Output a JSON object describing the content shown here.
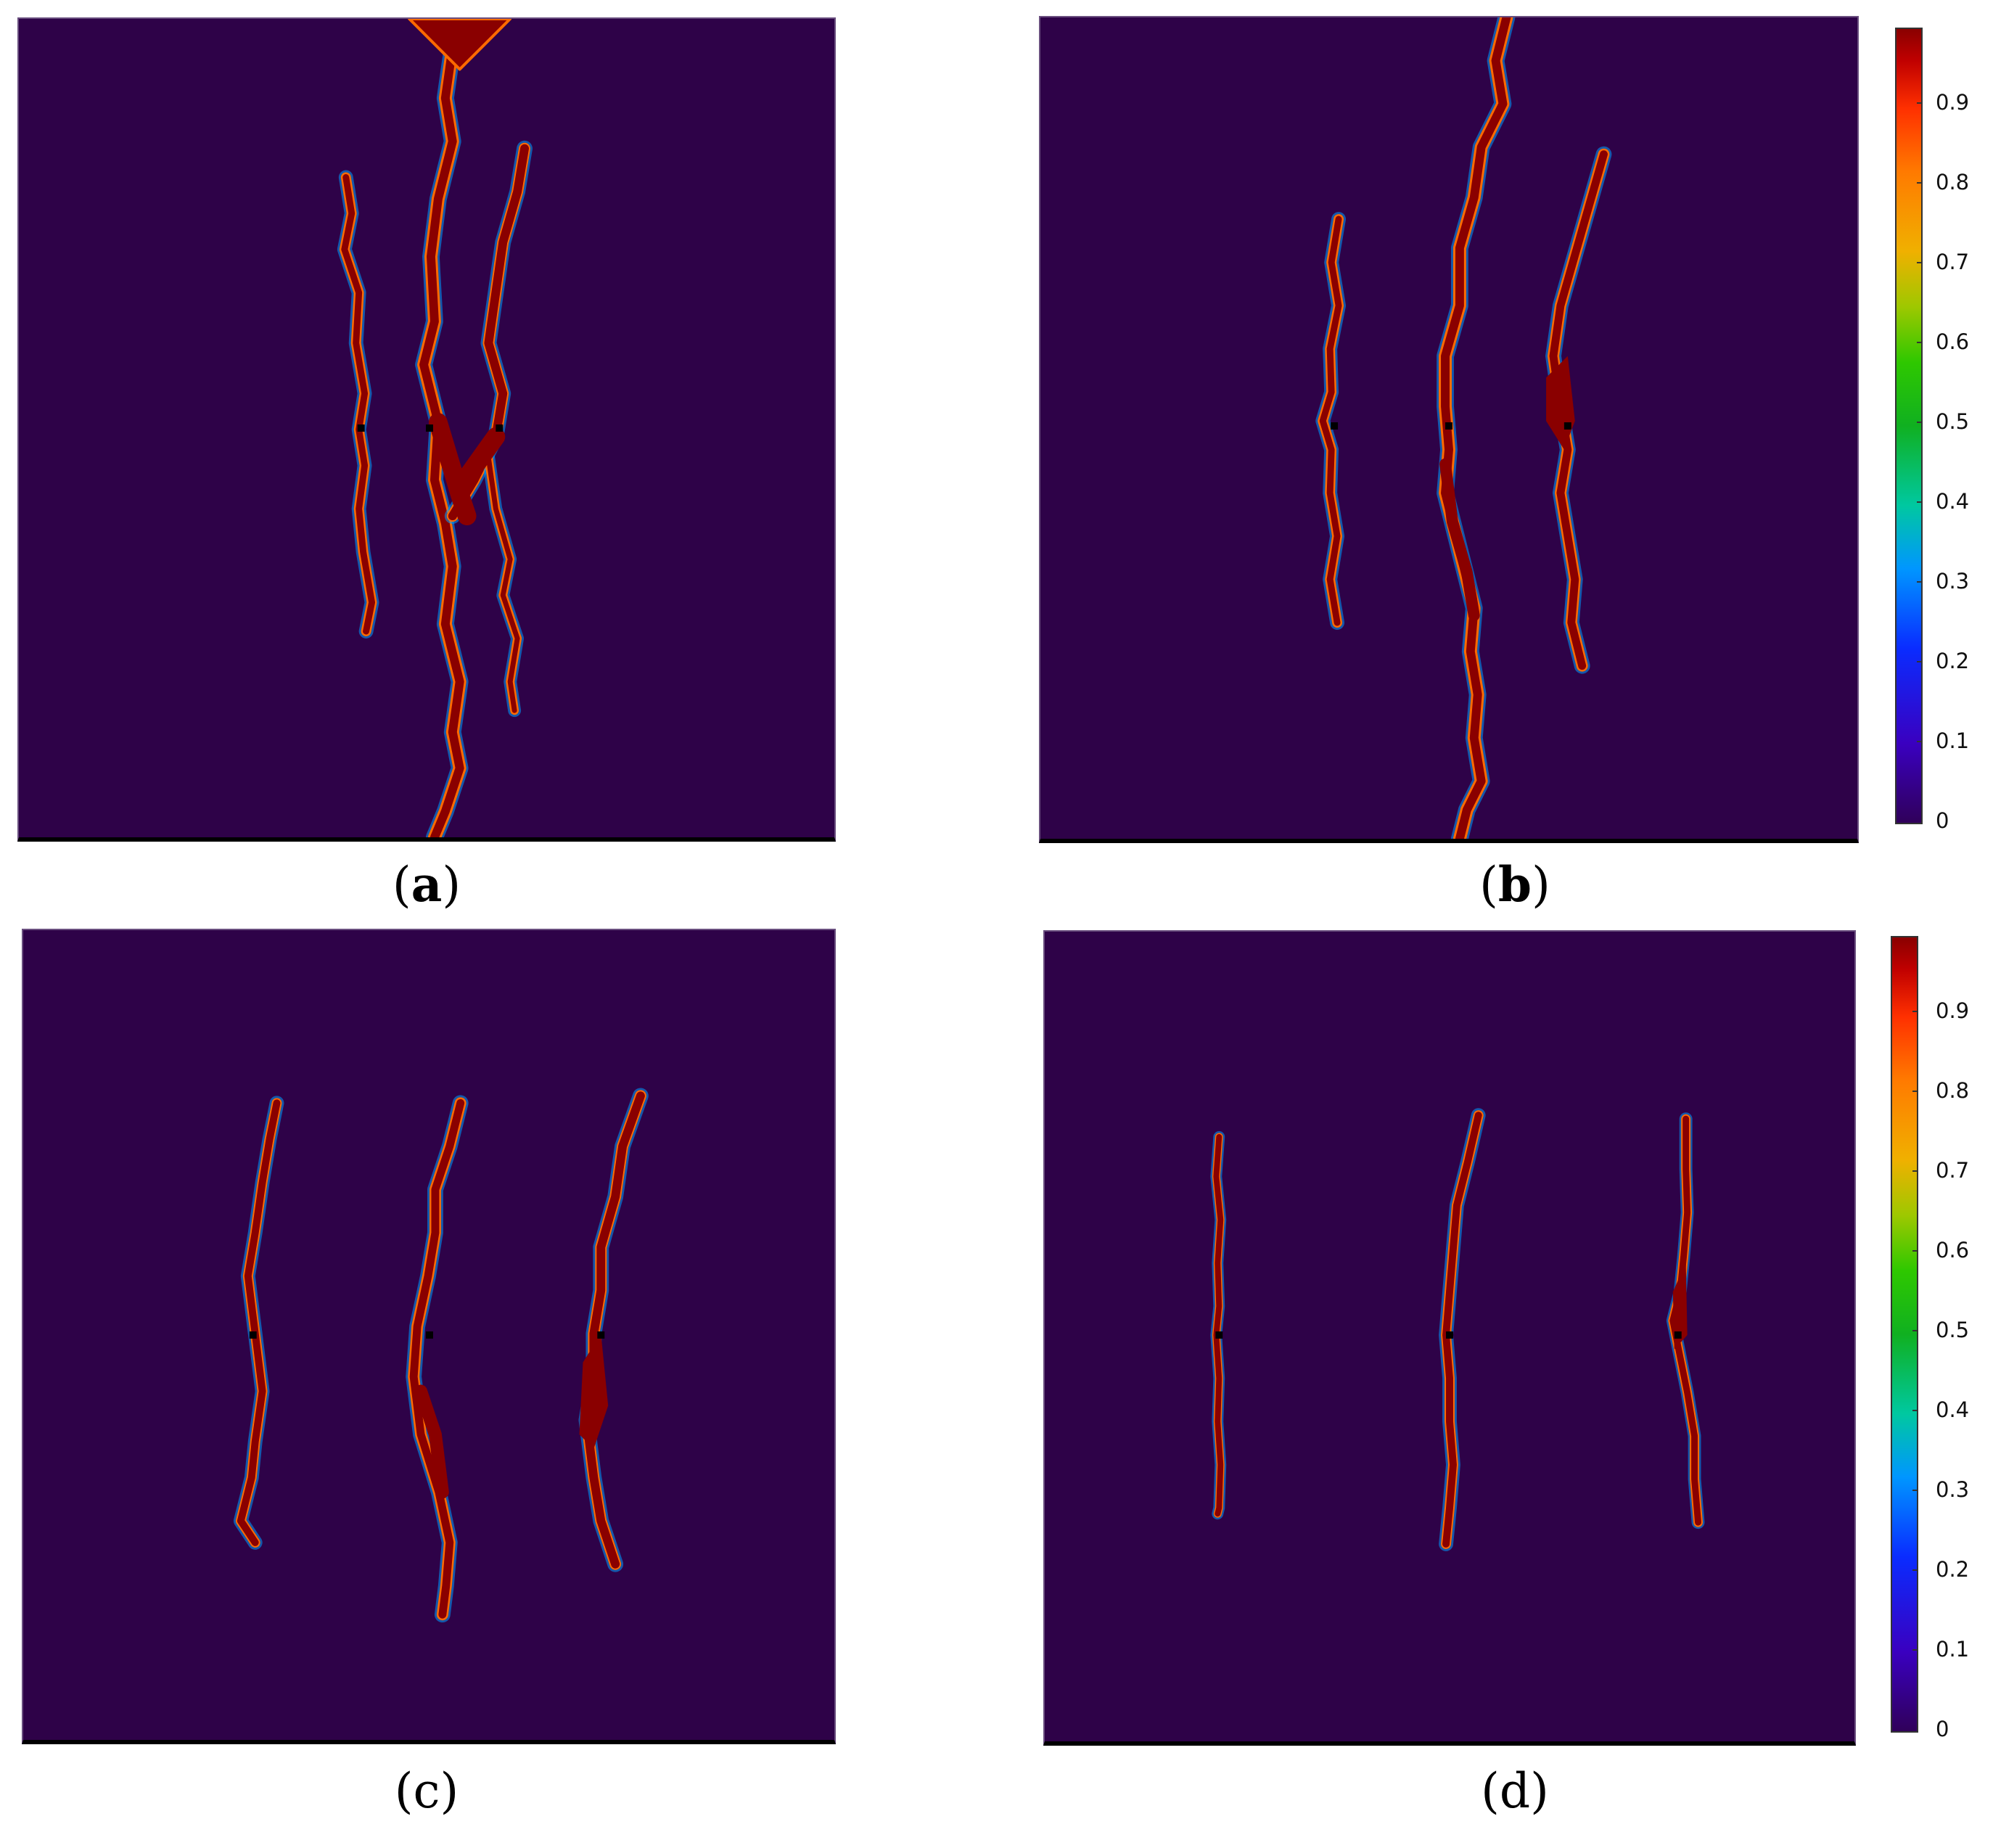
{
  "panels": [
    {
      "label": "(a)",
      "letter": "a"
    },
    {
      "label": "(b)",
      "letter": "b"
    },
    {
      "label": "(c)",
      "letter": "c"
    },
    {
      "label": "(d)",
      "letter": "d"
    }
  ],
  "colorbar": {
    "ticks": [
      "0.9",
      "0.8",
      "0.7",
      "0.6",
      "0.5",
      "0.4",
      "0.3",
      "0.2",
      "0.1",
      "0"
    ],
    "values": [
      0.9,
      0.8,
      0.7,
      0.6,
      0.5,
      0.4,
      0.3,
      0.2,
      0.1,
      0
    ],
    "range": [
      0,
      1
    ]
  },
  "colors": {
    "background": "#2e0248",
    "crack": "#8a0000",
    "crack_edge_hot": "#ff5a00",
    "crack_edge_mid": "#20c030",
    "crack_edge_cool": "#00a0ff"
  }
}
